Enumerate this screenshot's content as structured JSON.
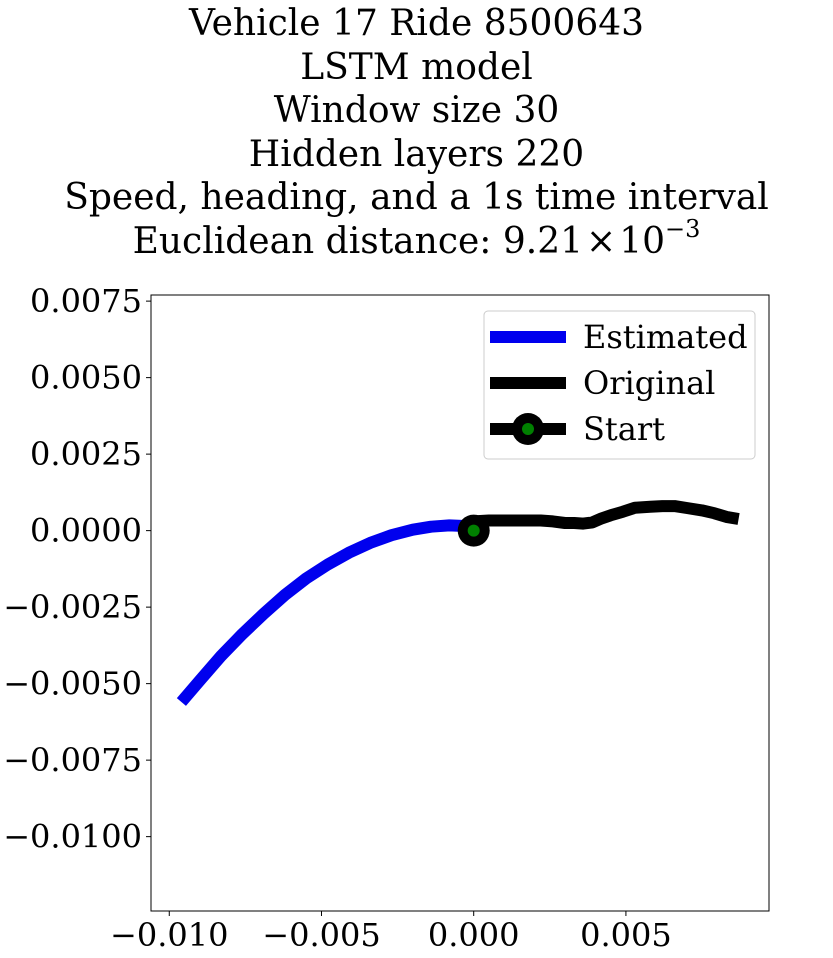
{
  "title_lines": [
    "Vehicle 17 Ride 8500643",
    "LSTM model",
    "Window size 30",
    "Hidden layers 220",
    "Speed, heading, and a 1s time interval"
  ],
  "distance_label": "Euclidean distance: 9.21",
  "distance_times": "×",
  "distance_base": "10",
  "distance_exponent": "−3",
  "chart_data": {
    "type": "line",
    "title": "Vehicle 17 Ride 8500643\nLSTM model\nWindow size 30\nHidden layers 220\nSpeed, heading, and a 1s time interval\nEuclidean distance: 9.21×10^-3",
    "xlabel": "",
    "ylabel": "",
    "xlim": [
      -0.0106,
      0.0097
    ],
    "ylim": [
      -0.01243,
      0.0077
    ],
    "xticks": [
      -0.01,
      -0.005,
      0.0,
      0.005
    ],
    "xtick_labels": [
      "−0.010",
      "−0.005",
      "0.000",
      "0.005"
    ],
    "yticks": [
      0.0075,
      0.005,
      0.0025,
      0.0,
      -0.0025,
      -0.005,
      -0.0075,
      -0.01
    ],
    "ytick_labels": [
      "0.0075",
      "0.0050",
      "0.0025",
      "0.0000",
      "−0.0025",
      "−0.0050",
      "−0.0075",
      "−0.0100"
    ],
    "grid": false,
    "legend_position": "top-right",
    "series": [
      {
        "name": "Estimated",
        "color": "#0000ee",
        "x": [
          -0.0096,
          -0.009,
          -0.0083,
          -0.0076,
          -0.0069,
          -0.0062,
          -0.0055,
          -0.0048,
          -0.0041,
          -0.0034,
          -0.0027,
          -0.002,
          -0.0014,
          -0.0008,
          -0.0003,
          0.0
        ],
        "y": [
          -0.0056,
          -0.0049,
          -0.0041,
          -0.00338,
          -0.00272,
          -0.0021,
          -0.00156,
          -0.00111,
          -0.00072,
          -0.0004,
          -0.00015,
          3e-05,
          0.00013,
          0.00017,
          0.00015,
          0.0001
        ]
      },
      {
        "name": "Original",
        "color": "#000000",
        "x": [
          0.0,
          0.0005,
          0.001,
          0.0016,
          0.0022,
          0.0026,
          0.003,
          0.0033,
          0.0036,
          0.0039,
          0.0042,
          0.0045,
          0.0049,
          0.0053,
          0.0058,
          0.0062,
          0.0066,
          0.007,
          0.0075,
          0.0079,
          0.0083,
          0.0087
        ],
        "y": [
          0.0003,
          0.00033,
          0.00033,
          0.00033,
          0.00033,
          0.0003,
          0.00025,
          0.00025,
          0.00023,
          0.00027,
          0.0004,
          0.0005,
          0.00062,
          0.00075,
          0.00078,
          0.0008,
          0.0008,
          0.00074,
          0.00066,
          0.00057,
          0.00045,
          0.00038
        ]
      }
    ],
    "markers": [
      {
        "name": "Start",
        "x": 0.0,
        "y": 0.0,
        "edge_color": "#000000",
        "face_color": "#008000"
      }
    ]
  }
}
